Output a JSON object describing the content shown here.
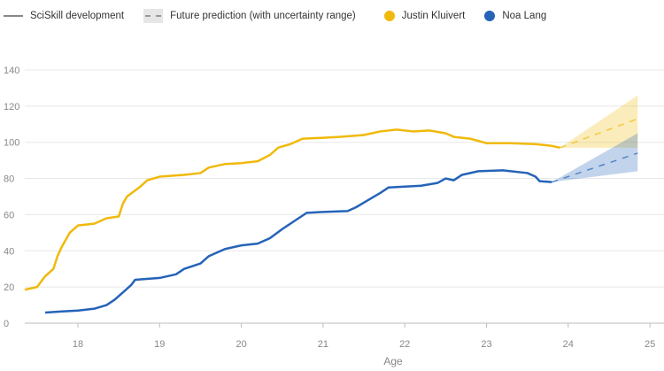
{
  "chart_data": {
    "type": "line",
    "xlabel": "Age",
    "xlim": [
      17.35,
      25.15
    ],
    "ylim": [
      0,
      150
    ],
    "xticks": [
      18,
      19,
      20,
      21,
      22,
      23,
      24,
      25
    ],
    "yticks": [
      0,
      20,
      40,
      60,
      80,
      100,
      120,
      140
    ],
    "grid": true,
    "legend": {
      "placement": "top-left",
      "items": [
        {
          "label": "SciSkill development",
          "kind": "line"
        },
        {
          "label": "Future prediction (with uncertainty range)",
          "kind": "dashed"
        },
        {
          "label": "Justin Kluivert",
          "kind": "dot",
          "color": "#f0b90b"
        },
        {
          "label": "Noa Lang",
          "kind": "dot",
          "color": "#2563b8"
        }
      ]
    },
    "series": [
      {
        "name": "Justin Kluivert",
        "color": "#f0b90b",
        "x": [
          17.35,
          17.5,
          17.6,
          17.7,
          17.75,
          17.8,
          17.9,
          18.0,
          18.2,
          18.35,
          18.5,
          18.55,
          18.6,
          18.75,
          18.85,
          19.0,
          19.3,
          19.5,
          19.6,
          19.8,
          20.0,
          20.2,
          20.35,
          20.45,
          20.6,
          20.75,
          21.0,
          21.2,
          21.5,
          21.7,
          21.9,
          22.1,
          22.3,
          22.5,
          22.6,
          22.8,
          23.0,
          23.3,
          23.6,
          23.8,
          23.9
        ],
        "y": [
          18.5,
          20,
          26,
          30,
          37,
          42,
          50,
          54,
          55,
          58,
          59,
          66,
          70,
          75,
          79,
          81,
          82,
          83,
          86,
          88,
          88.5,
          89.5,
          93,
          97,
          99,
          102,
          102.5,
          103,
          104,
          106,
          107,
          106,
          106.5,
          105,
          103,
          102,
          99.5,
          99.5,
          99,
          98,
          97
        ],
        "prediction": {
          "x": [
            23.9,
            24.85
          ],
          "mean": [
            97,
            113
          ],
          "upper": [
            97,
            126
          ],
          "lower": [
            97,
            97
          ]
        }
      },
      {
        "name": "Noa Lang",
        "color": "#2563b8",
        "x": [
          17.6,
          17.8,
          18.0,
          18.2,
          18.35,
          18.45,
          18.55,
          18.65,
          18.7,
          19.0,
          19.2,
          19.3,
          19.5,
          19.6,
          19.8,
          20.0,
          20.2,
          20.35,
          20.5,
          20.6,
          20.7,
          20.8,
          21.0,
          21.3,
          21.4,
          21.55,
          21.7,
          21.8,
          22.0,
          22.2,
          22.4,
          22.5,
          22.6,
          22.7,
          22.9,
          23.2,
          23.5,
          23.6,
          23.65,
          23.8
        ],
        "y": [
          5.9,
          6.5,
          7,
          8,
          10,
          13,
          17,
          21,
          24,
          25,
          27,
          30,
          33,
          37,
          41,
          43,
          44,
          47,
          52,
          55,
          58,
          61,
          61.5,
          62,
          64,
          68,
          72,
          75,
          75.5,
          76,
          77.5,
          80,
          79,
          82,
          84,
          84.5,
          83,
          81,
          78.5,
          78
        ],
        "prediction": {
          "x": [
            23.8,
            24.85
          ],
          "mean": [
            78,
            94
          ],
          "upper": [
            78,
            105
          ],
          "lower": [
            78,
            84
          ]
        }
      }
    ]
  }
}
